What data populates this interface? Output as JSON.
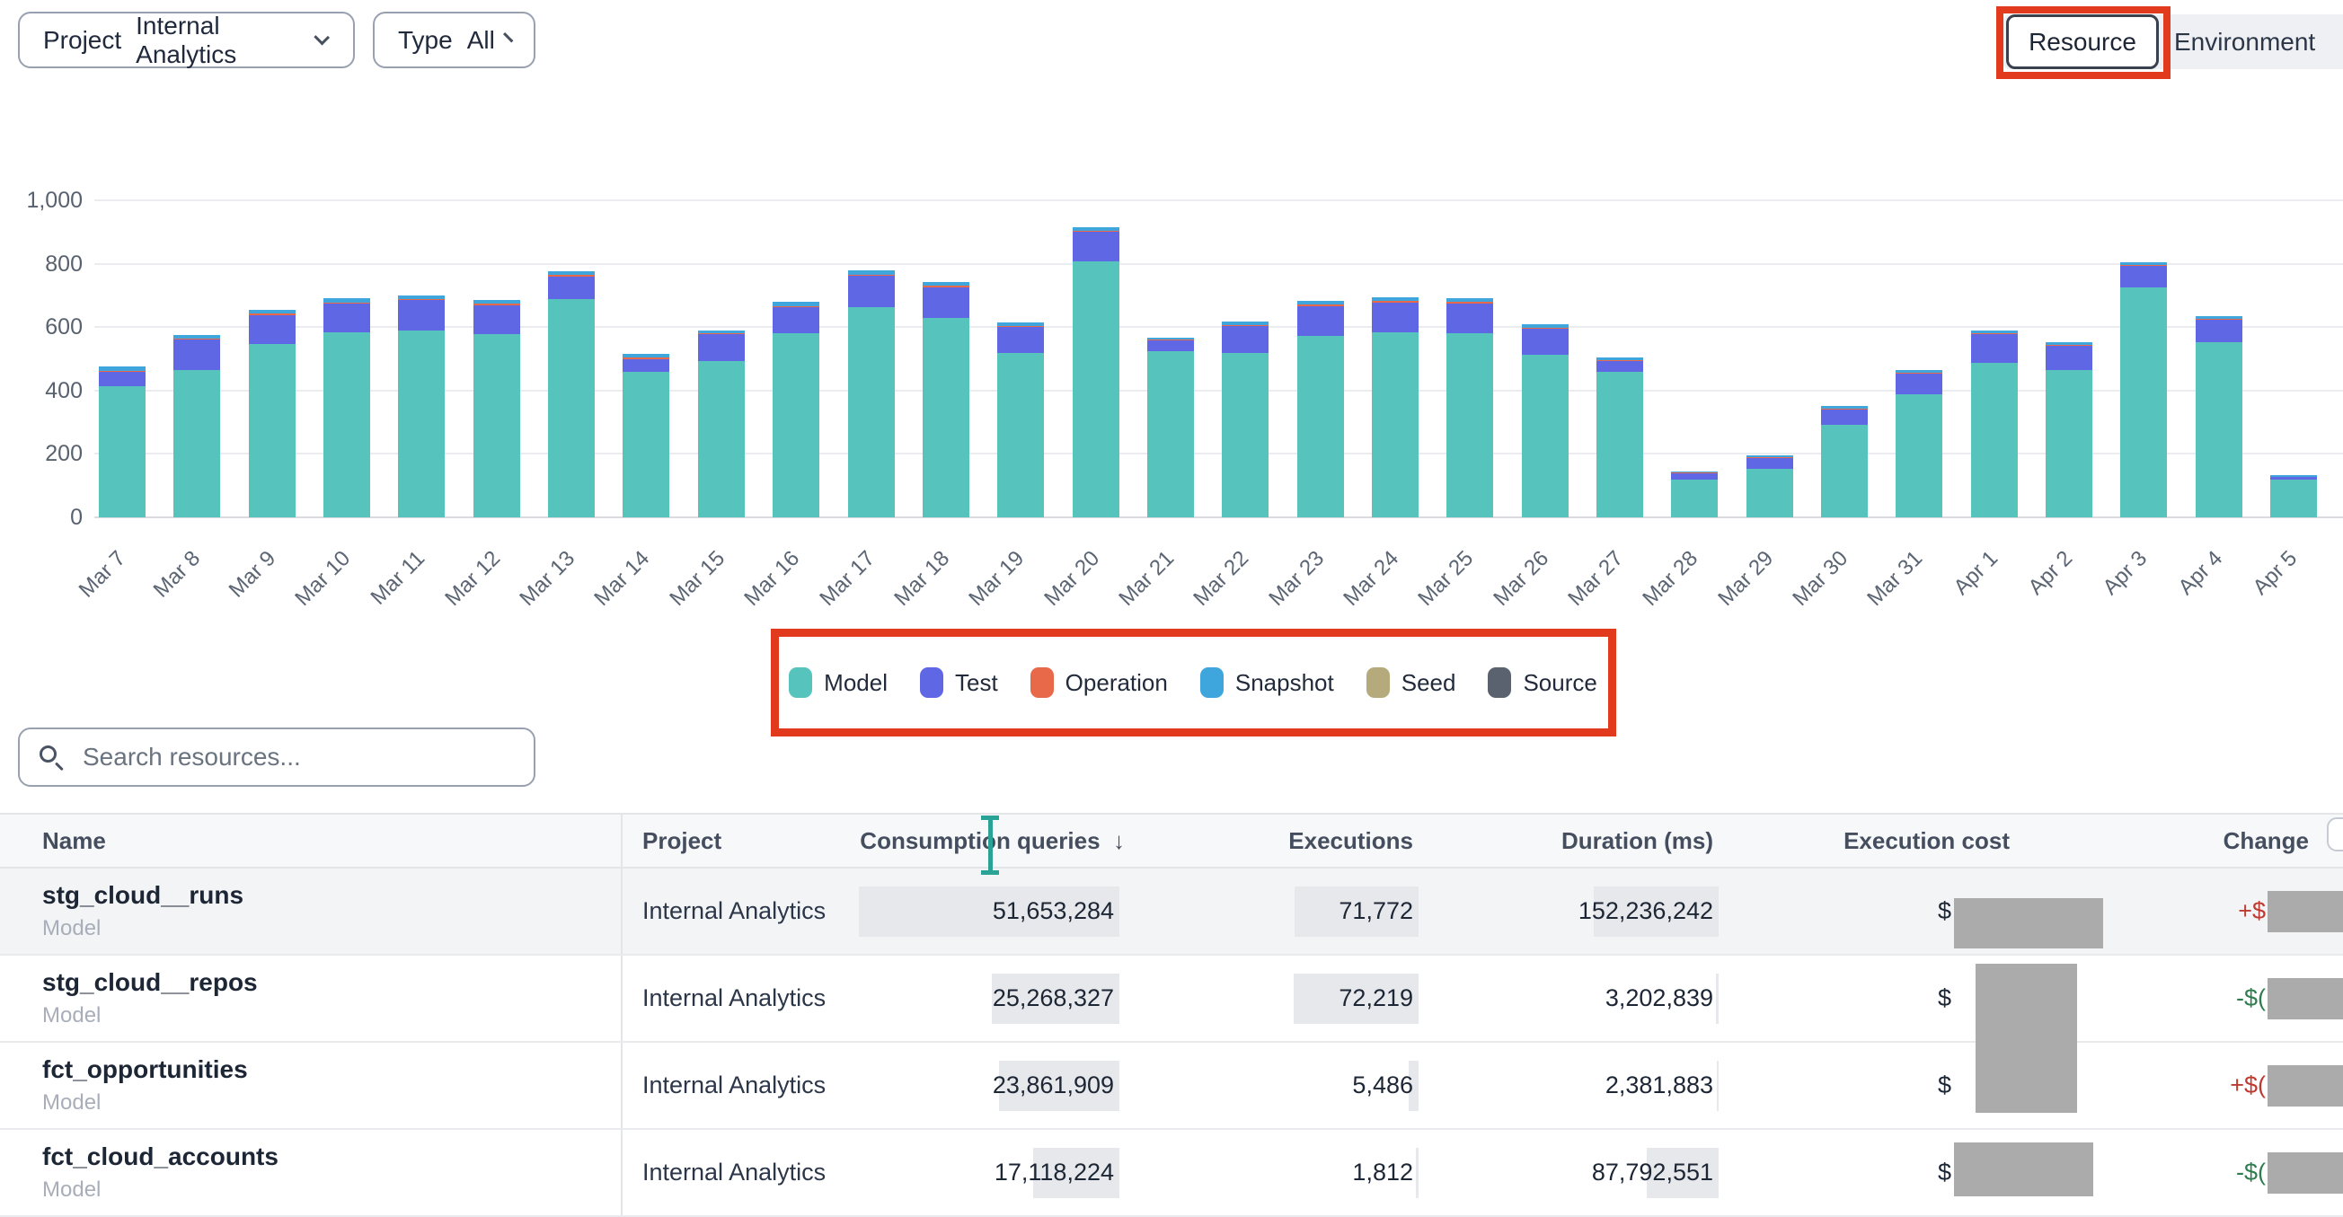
{
  "toolbar": {
    "project_label": "Project",
    "project_value": "Internal Analytics",
    "type_label": "Type",
    "type_value": "All",
    "resource_tab": "Resource",
    "environment_tab": "Environment"
  },
  "chart_data": {
    "type": "bar",
    "stacked": true,
    "title": "",
    "xlabel": "",
    "ylabel": "",
    "ylim": [
      0,
      1000
    ],
    "yticks": [
      0,
      200,
      400,
      600,
      800,
      1000
    ],
    "ytick_labels": [
      "0",
      "200",
      "400",
      "600",
      "800",
      "1,000"
    ],
    "grid": true,
    "legend_position": "bottom",
    "categories": [
      "Mar 7",
      "Mar 8",
      "Mar 9",
      "Mar 10",
      "Mar 11",
      "Mar 12",
      "Mar 13",
      "Mar 14",
      "Mar 15",
      "Mar 16",
      "Mar 17",
      "Mar 18",
      "Mar 19",
      "Mar 20",
      "Mar 21",
      "Mar 22",
      "Mar 23",
      "Mar 24",
      "Mar 25",
      "Mar 26",
      "Mar 27",
      "Mar 28",
      "Mar 29",
      "Mar 30",
      "Mar 31",
      "Apr 1",
      "Apr 2",
      "Apr 3",
      "Apr 4",
      "Apr 5"
    ],
    "series": [
      {
        "name": "Model",
        "color": "#57C3BD",
        "values": [
          415,
          465,
          548,
          585,
          590,
          578,
          688,
          458,
          492,
          582,
          662,
          628,
          518,
          806,
          525,
          518,
          572,
          585,
          580,
          512,
          458,
          118,
          152,
          292,
          388,
          486,
          465,
          725,
          552,
          118
        ]
      },
      {
        "name": "Test",
        "color": "#5F67E4",
        "values": [
          45,
          95,
          90,
          90,
          95,
          92,
          72,
          42,
          85,
          82,
          100,
          98,
          82,
          95,
          32,
          85,
          95,
          92,
          95,
          82,
          36,
          22,
          36,
          48,
          65,
          92,
          75,
          68,
          72,
          10
        ]
      },
      {
        "name": "Operation",
        "color": "#E8684A",
        "values": [
          3,
          3,
          4,
          3,
          3,
          3,
          4,
          3,
          3,
          3,
          4,
          4,
          3,
          4,
          3,
          4,
          4,
          5,
          5,
          4,
          3,
          1,
          2,
          3,
          3,
          3,
          3,
          3,
          3,
          1
        ]
      },
      {
        "name": "Snapshot",
        "color": "#3EA5DD",
        "values": [
          12,
          12,
          13,
          12,
          12,
          12,
          11,
          12,
          10,
          13,
          12,
          12,
          12,
          10,
          8,
          11,
          11,
          12,
          12,
          12,
          8,
          4,
          5,
          7,
          9,
          9,
          9,
          9,
          8,
          3
        ]
      },
      {
        "name": "Seed",
        "color": "#B5AA7B",
        "values": [
          0,
          0,
          0,
          0,
          0,
          0,
          0,
          0,
          0,
          0,
          0,
          0,
          0,
          0,
          0,
          0,
          0,
          0,
          0,
          0,
          0,
          0,
          0,
          0,
          0,
          0,
          0,
          0,
          0,
          0
        ]
      },
      {
        "name": "Source",
        "color": "#5A6270",
        "values": [
          0,
          0,
          0,
          0,
          0,
          0,
          0,
          0,
          0,
          0,
          0,
          0,
          0,
          0,
          0,
          0,
          0,
          0,
          0,
          0,
          0,
          0,
          0,
          0,
          0,
          0,
          0,
          0,
          0,
          0
        ]
      }
    ]
  },
  "legend": [
    {
      "label": "Model",
      "color": "#57C3BD"
    },
    {
      "label": "Test",
      "color": "#5F67E4"
    },
    {
      "label": "Operation",
      "color": "#E8684A"
    },
    {
      "label": "Snapshot",
      "color": "#3EA5DD"
    },
    {
      "label": "Seed",
      "color": "#B5AA7B"
    },
    {
      "label": "Source",
      "color": "#5A6270"
    }
  ],
  "search": {
    "placeholder": "Search resources..."
  },
  "table": {
    "columns": [
      "Name",
      "Project",
      "Consumption queries",
      "Executions",
      "Duration (ms)",
      "Execution cost",
      "Change"
    ],
    "sort_indicator": "↓",
    "sorted_column": "Consumption queries",
    "rows": [
      {
        "name": "stg_cloud__runs",
        "type": "Model",
        "project": "Internal Analytics",
        "consumption": "51,653,284",
        "executions": "71,772",
        "duration": "152,236,242",
        "cost_prefix": "$",
        "change_prefix": "+$",
        "change_sign": "pos"
      },
      {
        "name": "stg_cloud__repos",
        "type": "Model",
        "project": "Internal Analytics",
        "consumption": "25,268,327",
        "executions": "72,219",
        "duration": "3,202,839",
        "cost_prefix": "$",
        "change_prefix": "-$(",
        "change_sign": "neg"
      },
      {
        "name": "fct_opportunities",
        "type": "Model",
        "project": "Internal Analytics",
        "consumption": "23,861,909",
        "executions": "5,486",
        "duration": "2,381,883",
        "cost_prefix": "$",
        "change_prefix": "+$(",
        "change_sign": "pos"
      },
      {
        "name": "fct_cloud_accounts",
        "type": "Model",
        "project": "Internal Analytics",
        "consumption": "17,118,224",
        "executions": "1,812",
        "duration": "87,792,551",
        "cost_prefix": "$",
        "change_prefix": "-$(",
        "change_sign": "neg"
      }
    ],
    "consumption_values": [
      51653284,
      25268327,
      23861909,
      17118224
    ],
    "executions_values": [
      71772,
      72219,
      5486,
      1812
    ],
    "duration_values": [
      152236242,
      3202839,
      2381883,
      87792551
    ]
  }
}
